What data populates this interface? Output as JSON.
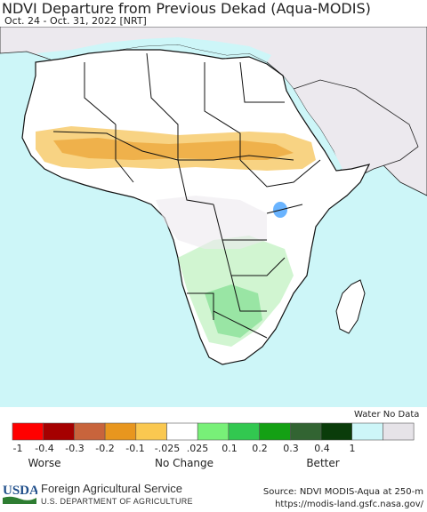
{
  "header": {
    "title": "NDVI Departure from Previous Dekad (Aqua-MODIS)",
    "subtitle": "Oct. 24 - Oct. 31, 2022 [NRT]"
  },
  "map": {
    "ocean_color": "#cdf6f8",
    "land_color": "#ffffff",
    "nodata_land_color": "#ece9ee",
    "border_color": "#111111",
    "region": "Africa"
  },
  "legend": {
    "water_nodata_label": "Water No Data",
    "ticks": [
      "-1",
      "-0.4",
      "-0.3",
      "-0.2",
      "-0.1",
      "-.025",
      ".025",
      "0.1",
      "0.2",
      "0.3",
      "0.4",
      "1"
    ],
    "categories": [
      "Worse",
      "No Change",
      "Better"
    ],
    "colors": [
      "#ff0000",
      "#a50000",
      "#c8643c",
      "#e8961e",
      "#fac850",
      "#ffffff",
      "#78f078",
      "#32c850",
      "#14a014",
      "#326432",
      "#0a3c0a",
      "#cdf6f8",
      "#e6e3e8"
    ]
  },
  "footer": {
    "agency": "Foreign Agricultural Service",
    "department": "U.S. DEPARTMENT OF AGRICULTURE",
    "source_line1": "Source: NDVI MODIS-Aqua at 250-m",
    "source_line2": "https://modis-land.gsfc.nasa.gov/",
    "logo_text": "USDA"
  }
}
